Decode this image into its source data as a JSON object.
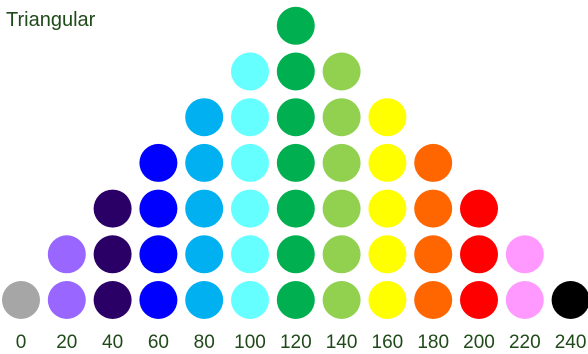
{
  "chart_data": {
    "type": "scatter",
    "title": "Triangular",
    "xlabel": "",
    "ylabel": "",
    "x_ticks": [
      "0",
      "20",
      "40",
      "60",
      "80",
      "100",
      "120",
      "140",
      "160",
      "180",
      "200",
      "220",
      "240"
    ],
    "columns": [
      {
        "x": 0,
        "count": 1,
        "color": "#a6a6a6"
      },
      {
        "x": 20,
        "count": 2,
        "color": "#9966ff"
      },
      {
        "x": 40,
        "count": 3,
        "color": "#2b0066"
      },
      {
        "x": 60,
        "count": 4,
        "color": "#0000ff"
      },
      {
        "x": 80,
        "count": 5,
        "color": "#00b0f0"
      },
      {
        "x": 100,
        "count": 6,
        "color": "#66ffff"
      },
      {
        "x": 120,
        "count": 7,
        "color": "#00b050"
      },
      {
        "x": 140,
        "count": 6,
        "color": "#92d050"
      },
      {
        "x": 160,
        "count": 5,
        "color": "#ffff00"
      },
      {
        "x": 180,
        "count": 4,
        "color": "#ff6600"
      },
      {
        "x": 200,
        "count": 3,
        "color": "#ff0000"
      },
      {
        "x": 220,
        "count": 2,
        "color": "#ff99ff"
      },
      {
        "x": 240,
        "count": 1,
        "color": "#000000"
      }
    ],
    "xlim": [
      0,
      240
    ],
    "ylim": [
      0,
      7
    ],
    "grid": false,
    "legend": false
  }
}
